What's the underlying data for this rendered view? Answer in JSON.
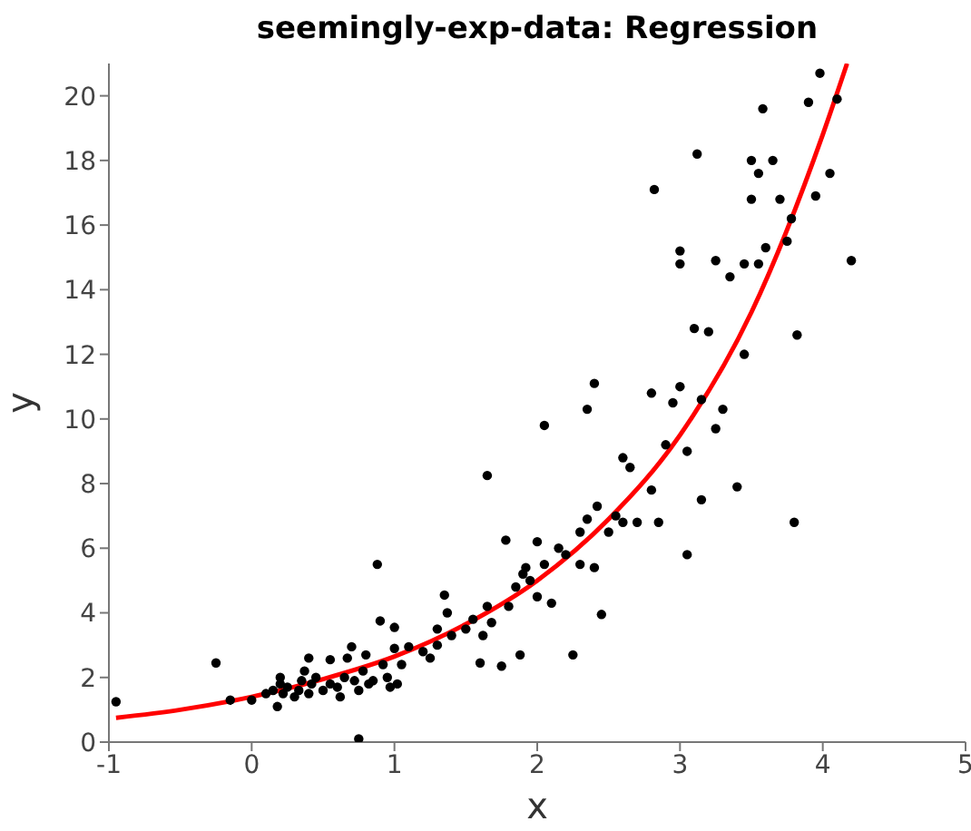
{
  "chart_data": {
    "type": "scatter",
    "title": "seemingly-exp-data: Regression",
    "xlabel": "x",
    "ylabel": "y",
    "xlim": [
      -1,
      5
    ],
    "xticks": [
      -1,
      0,
      1,
      2,
      3,
      4,
      5
    ],
    "ylim": [
      0,
      21
    ],
    "yticks": [
      0,
      2,
      4,
      6,
      8,
      10,
      12,
      14,
      16,
      18,
      20
    ],
    "grid": false,
    "legend": false,
    "series": [
      {
        "color": "#000000",
        "marker": "circle",
        "x": [
          -0.95,
          -0.25,
          -0.15,
          0,
          0.1,
          0.15,
          0.18,
          0.2,
          0.2,
          0.22,
          0.25,
          0.3,
          0.33,
          0.35,
          0.37,
          0.4,
          0.42,
          0.45,
          0.4,
          0.5,
          0.55,
          0.55,
          0.6,
          0.62,
          0.65,
          0.67,
          0.7,
          0.72,
          0.75,
          0.75,
          0.78,
          0.8,
          0.82,
          0.85,
          0.88,
          0.9,
          0.92,
          0.95,
          0.97,
          1.0,
          1.0,
          1.02,
          1.05,
          1.1,
          1.2,
          1.25,
          1.3,
          1.3,
          1.35,
          1.37,
          1.4,
          1.5,
          1.55,
          1.6,
          1.62,
          1.65,
          1.65,
          1.68,
          1.75,
          1.78,
          1.8,
          1.85,
          1.88,
          1.9,
          1.92,
          1.95,
          2.0,
          2.0,
          2.05,
          2.05,
          2.1,
          2.15,
          2.2,
          2.25,
          2.3,
          2.3,
          2.35,
          2.35,
          2.4,
          2.4,
          2.42,
          2.45,
          2.5,
          2.55,
          2.6,
          2.6,
          2.65,
          2.7,
          2.8,
          2.8,
          2.85,
          2.82,
          2.9,
          2.95,
          3.0,
          3.0,
          3.05,
          3.05,
          3.1,
          3.12,
          3.15,
          3.15,
          3.2,
          3.25,
          3.25,
          3.3,
          3.35,
          3.4,
          3.45,
          3.45,
          3.5,
          3.5,
          3.55,
          3.55,
          3.58,
          3.6,
          3.65,
          3.7,
          3.75,
          3.78,
          3.8,
          3.82,
          3.9,
          3.95,
          3.98,
          4.05,
          4.1,
          4.2,
          3.0
        ],
        "values": [
          1.25,
          2.45,
          1.3,
          1.3,
          1.5,
          1.6,
          1.1,
          2.0,
          1.8,
          1.5,
          1.7,
          1.4,
          1.6,
          1.9,
          2.2,
          1.5,
          1.8,
          2.0,
          2.6,
          1.6,
          1.8,
          2.55,
          1.7,
          1.4,
          2.0,
          2.6,
          2.95,
          1.9,
          1.6,
          0.1,
          2.2,
          2.7,
          1.8,
          1.9,
          5.5,
          3.75,
          2.4,
          2.0,
          1.7,
          2.9,
          3.55,
          1.8,
          2.4,
          2.95,
          2.8,
          2.6,
          3.0,
          3.5,
          4.55,
          4.0,
          3.3,
          3.5,
          3.8,
          2.45,
          3.3,
          4.2,
          8.25,
          3.7,
          2.35,
          6.25,
          4.2,
          4.8,
          2.7,
          5.2,
          5.4,
          5.0,
          4.5,
          6.2,
          9.8,
          5.5,
          4.3,
          6.0,
          5.8,
          2.7,
          5.5,
          6.5,
          6.9,
          10.3,
          5.4,
          11.1,
          7.3,
          3.95,
          6.5,
          7.0,
          8.8,
          6.8,
          8.5,
          6.8,
          7.8,
          10.8,
          6.8,
          17.1,
          9.2,
          10.5,
          11.0,
          15.2,
          9.0,
          5.8,
          12.8,
          18.2,
          10.6,
          7.5,
          12.7,
          14.9,
          9.7,
          10.3,
          14.4,
          7.9,
          14.8,
          12.0,
          16.8,
          18.0,
          17.6,
          14.8,
          19.6,
          15.3,
          18.0,
          16.8,
          15.5,
          16.2,
          6.8,
          12.6,
          19.8,
          16.9,
          20.7,
          17.6,
          19.9,
          14.9,
          14.8
        ]
      },
      {
        "type": "line",
        "color": "#ff0000",
        "marker": "none",
        "line_style": "solid",
        "x": [
          -0.95,
          -0.5,
          0,
          0.5,
          1,
          1.5,
          2,
          2.5,
          3,
          3.5,
          4,
          4.17
        ],
        "values": [
          0.75,
          1.0,
          1.4,
          1.95,
          2.65,
          3.65,
          5.0,
          6.9,
          9.5,
          13.3,
          18.8,
          21
        ]
      }
    ]
  }
}
